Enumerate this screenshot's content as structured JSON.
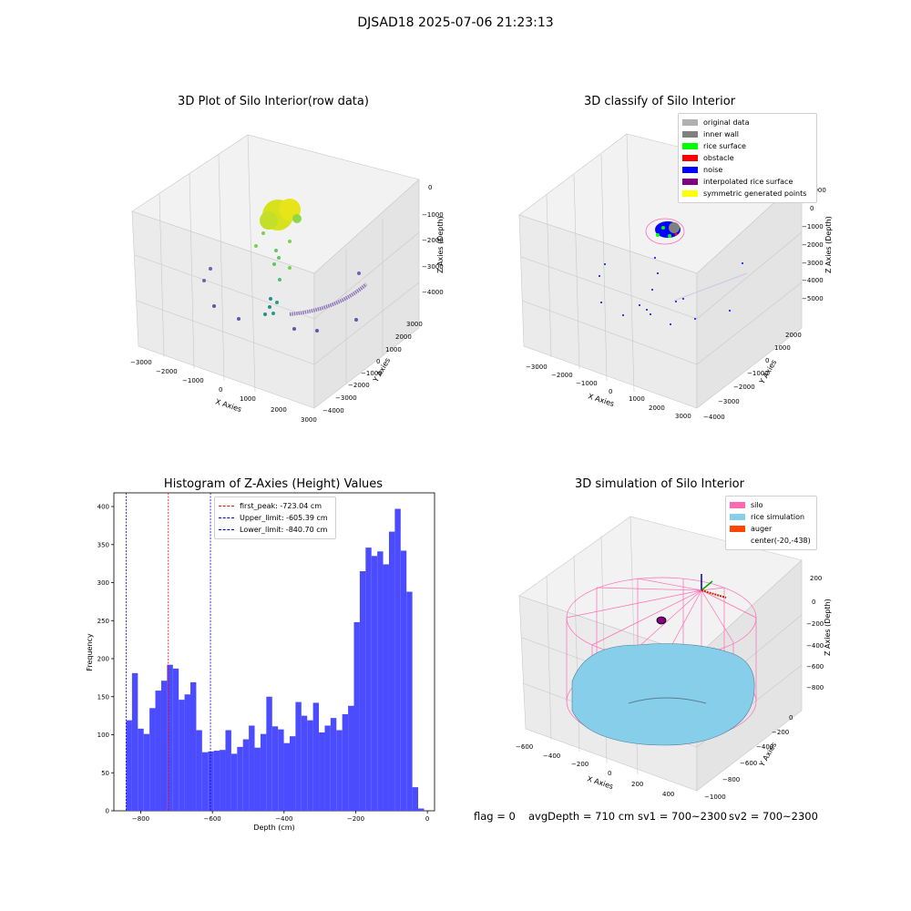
{
  "suptitle": "DJSAD18 2025-07-06 21:23:13",
  "colors": {
    "hist_bar": "#4b4bff",
    "first_peak": "#ff0000",
    "limits": "#0000cc",
    "silo": "#ff69b4",
    "rice": "#87ceeb",
    "auger": "#ff4500",
    "obstacle": "#ff0000",
    "noise": "#0000ff",
    "rice_surface": "#00ff00",
    "interp": "#800080",
    "yellow": "#ffff00",
    "inner_wall": "#808080",
    "original": "#b0b0b0"
  },
  "panel_raw": {
    "title": "3D Plot of Silo Interior(row data)",
    "xlabel": "X Axies",
    "ylabel": "Y Axies",
    "zlabel": "Z Axies (Depth)",
    "xticks": [
      "−3000",
      "−2000",
      "−1000",
      "0",
      "1000",
      "2000",
      "3000"
    ],
    "yticks": [
      "3000",
      "2000",
      "1000",
      "0",
      "−1000",
      "−2000",
      "−3000",
      "−4000"
    ],
    "zticks": [
      "0",
      "−1000",
      "−2000",
      "−3000",
      "−4000"
    ]
  },
  "panel_classify": {
    "title": "3D classify of Silo Interior",
    "xlabel": "X Axies",
    "ylabel": "Y Axies",
    "zlabel": "Z Axies (Depth)",
    "xticks": [
      "−3000",
      "−2000",
      "−1000",
      "0",
      "1000",
      "2000",
      "3000"
    ],
    "yticks": [
      "2000",
      "1000",
      "0",
      "−1000",
      "−2000",
      "−3000",
      "−4000"
    ],
    "zticks": [
      "1000",
      "0",
      "−1000",
      "−2000",
      "−3000",
      "−4000",
      "−5000"
    ],
    "legend": [
      {
        "label": "original data",
        "color": "#b0b0b0"
      },
      {
        "label": "inner wall",
        "color": "#808080"
      },
      {
        "label": "rice surface",
        "color": "#00ff00"
      },
      {
        "label": "obstacle",
        "color": "#ff0000"
      },
      {
        "label": "noise",
        "color": "#0000ff"
      },
      {
        "label": "interpolated rice surface",
        "color": "#800080"
      },
      {
        "label": "symmetric generated points",
        "color": "#ffff00"
      }
    ]
  },
  "panel_sim": {
    "title": "3D simulation of Silo Interior",
    "xlabel": "X Axies",
    "ylabel": "Y Axies",
    "zlabel": "Z Axies (Depth)",
    "xticks": [
      "−600",
      "−400",
      "−200",
      "0",
      "200",
      "400"
    ],
    "yticks": [
      "0",
      "−200",
      "−400",
      "−600",
      "−800",
      "−1000"
    ],
    "zticks": [
      "200",
      "0",
      "−200",
      "−400",
      "−600",
      "−800"
    ],
    "legend": [
      {
        "label": "silo",
        "color": "#ff69b4"
      },
      {
        "label": "rice simulation",
        "color": "#87ceeb"
      },
      {
        "label": "auger",
        "color": "#ff4500"
      },
      {
        "label": "center(-20,-438)",
        "color": ""
      }
    ]
  },
  "footer": {
    "flag": "flag = 0",
    "avg": "avgDepth = 710 cm",
    "sv1": "sv1 = 700~2300",
    "sv2": "sv2 = 700~2300"
  },
  "chart_data": [
    {
      "type": "bar",
      "title": "Histogram of Z-Axies (Height) Values",
      "xlabel": "Depth (cm)",
      "ylabel": "Frequency",
      "xlim": [
        -875,
        20
      ],
      "ylim": [
        0,
        418
      ],
      "xticks": [
        -800,
        -600,
        -400,
        -200,
        0
      ],
      "yticks": [
        0,
        50,
        100,
        150,
        200,
        250,
        300,
        350,
        400
      ],
      "bin_start": -840.7,
      "bin_width": 16.3,
      "values": [
        119,
        181,
        108,
        101,
        135,
        158,
        171,
        192,
        187,
        146,
        153,
        169,
        106,
        77,
        78,
        79,
        80,
        106,
        75,
        84,
        94,
        112,
        83,
        101,
        150,
        111,
        107,
        89,
        98,
        143,
        125,
        119,
        142,
        103,
        112,
        122,
        106,
        127,
        138,
        248,
        315,
        346,
        335,
        341,
        324,
        367,
        397,
        342,
        288,
        31,
        3
      ],
      "lines": [
        {
          "label": "first_peak: -723.04 cm",
          "x": -723.04,
          "color": "#ff0000"
        },
        {
          "label": "Upper_limit: -605.39 cm",
          "x": -605.39,
          "color": "#0000cc"
        },
        {
          "label": "Lower_limit: -840.70 cm",
          "x": -840.7,
          "color": "#0000cc"
        }
      ],
      "legend": "top-center"
    }
  ]
}
